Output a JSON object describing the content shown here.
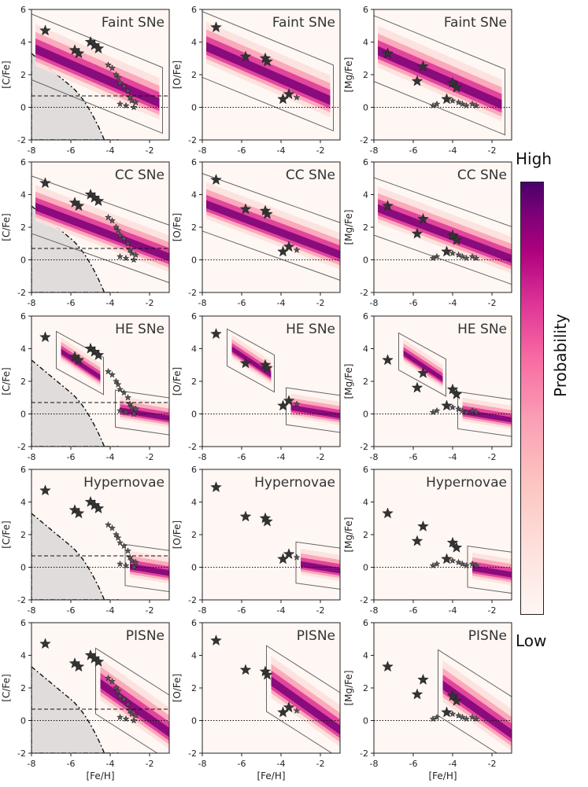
{
  "colorbar": {
    "high": "High",
    "low": "Low",
    "label": "Probability",
    "colors": [
      "#fff7f3",
      "#fde0dd",
      "#fcc5c0",
      "#fa9fb5",
      "#f768a1",
      "#dd3497",
      "#ae017e",
      "#7a0177",
      "#49006a"
    ]
  },
  "chart_data": {
    "type": "scatter",
    "rows": [
      "Faint SNe",
      "CC SNe",
      "HE SNe",
      "Hypernovae",
      "PISNe"
    ],
    "columns": [
      "[C/Fe]",
      "[O/Fe]",
      "[Mg/Fe]"
    ],
    "xlabel": "[Fe/H]",
    "xlim": [
      -8,
      -1
    ],
    "ylim": [
      -2,
      6
    ],
    "xticks": [
      -8,
      -6,
      -4,
      -2
    ],
    "yticks": [
      -2,
      0,
      2,
      4,
      6
    ],
    "reference_lines": {
      "solar": 0,
      "cemp_threshold": 0.7
    },
    "ytick_labels": [
      "-2",
      "0",
      "2",
      "4",
      "6"
    ],
    "xtick_labels": [
      "-8",
      "-6",
      "-4",
      "-2"
    ],
    "stars": {
      "C": [
        [
          -7.3,
          4.7
        ],
        [
          -5.8,
          3.5
        ],
        [
          -5.6,
          3.3
        ],
        [
          -5.0,
          4.0
        ],
        [
          -4.8,
          3.8
        ],
        [
          -4.6,
          3.6
        ],
        [
          -4.1,
          2.6
        ],
        [
          -3.9,
          2.4
        ],
        [
          -3.7,
          2.0
        ],
        [
          -3.6,
          1.8
        ],
        [
          -3.5,
          1.5
        ],
        [
          -3.3,
          1.3
        ],
        [
          -3.1,
          1.0
        ],
        [
          -3.0,
          0.6
        ],
        [
          -2.9,
          0.4
        ],
        [
          -2.7,
          0.3
        ],
        [
          -3.5,
          0.2
        ],
        [
          -3.2,
          0.1
        ],
        [
          -2.8,
          0.0
        ]
      ],
      "O": [
        [
          -7.3,
          4.9
        ],
        [
          -5.8,
          3.1
        ],
        [
          -4.8,
          3.0
        ],
        [
          -4.7,
          2.8
        ],
        [
          -3.9,
          0.5
        ],
        [
          -3.6,
          0.8
        ],
        [
          -3.2,
          0.6
        ]
      ],
      "Mg": [
        [
          -7.3,
          3.3
        ],
        [
          -5.5,
          2.5
        ],
        [
          -5.8,
          1.6
        ],
        [
          -4.0,
          1.5
        ],
        [
          -3.8,
          1.2
        ],
        [
          -4.3,
          0.5
        ],
        [
          -4.0,
          0.4
        ],
        [
          -3.7,
          0.3
        ],
        [
          -3.5,
          0.2
        ],
        [
          -3.3,
          0.1
        ],
        [
          -3.0,
          0.2
        ],
        [
          -4.8,
          0.2
        ],
        [
          -5.0,
          0.1
        ],
        [
          -2.8,
          0.1
        ]
      ]
    }
  }
}
